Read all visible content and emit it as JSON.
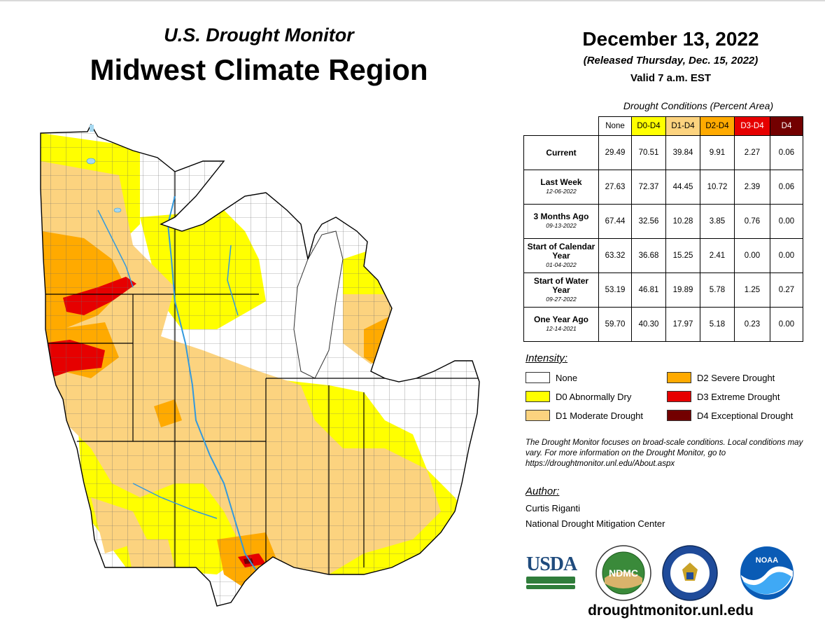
{
  "header": {
    "subtitle": "U.S. Drought Monitor",
    "title": "Midwest Climate Region",
    "date": "December 13, 2022",
    "released": "(Released Thursday, Dec. 15, 2022)",
    "valid": "Valid 7 a.m. EST"
  },
  "table": {
    "caption": "Drought Conditions (Percent Area)",
    "columns": [
      "None",
      "D0-D4",
      "D1-D4",
      "D2-D4",
      "D3-D4",
      "D4"
    ],
    "column_colors": [
      "#ffffff",
      "#ffff00",
      "#fcd37f",
      "#ffaa00",
      "#e60000",
      "#730000"
    ],
    "rows": [
      {
        "label": "Current",
        "date": "",
        "values": [
          "29.49",
          "70.51",
          "39.84",
          "9.91",
          "2.27",
          "0.06"
        ]
      },
      {
        "label": "Last Week",
        "date": "12-06-2022",
        "values": [
          "27.63",
          "72.37",
          "44.45",
          "10.72",
          "2.39",
          "0.06"
        ]
      },
      {
        "label": "3 Months Ago",
        "date": "09-13-2022",
        "values": [
          "67.44",
          "32.56",
          "10.28",
          "3.85",
          "0.76",
          "0.00"
        ]
      },
      {
        "label": "Start of Calendar Year",
        "date": "01-04-2022",
        "values": [
          "63.32",
          "36.68",
          "15.25",
          "2.41",
          "0.00",
          "0.00"
        ]
      },
      {
        "label": "Start of Water Year",
        "date": "09-27-2022",
        "values": [
          "53.19",
          "46.81",
          "19.89",
          "5.78",
          "1.25",
          "0.27"
        ]
      },
      {
        "label": "One Year Ago",
        "date": "12-14-2021",
        "values": [
          "59.70",
          "40.30",
          "17.97",
          "5.18",
          "0.23",
          "0.00"
        ]
      }
    ]
  },
  "legend": {
    "heading": "Intensity:",
    "items": [
      {
        "label": "None",
        "color": "#ffffff"
      },
      {
        "label": "D0 Abnormally Dry",
        "color": "#ffff00"
      },
      {
        "label": "D1 Moderate Drought",
        "color": "#fcd37f"
      },
      {
        "label": "D2 Severe Drought",
        "color": "#ffaa00"
      },
      {
        "label": "D3 Extreme Drought",
        "color": "#e60000"
      },
      {
        "label": "D4 Exceptional Drought",
        "color": "#730000"
      }
    ]
  },
  "note": "The Drought Monitor focuses on broad-scale conditions. Local conditions may vary. For more information on the Drought Monitor, go to https://droughtmonitor.unl.edu/About.aspx",
  "author": {
    "heading": "Author:",
    "name": "Curtis Riganti",
    "org": "National Drought Mitigation Center"
  },
  "logos": {
    "usda": "USDA",
    "ndmc": "NDMC",
    "noaa": "NOAA"
  },
  "url": "droughtmonitor.unl.edu",
  "map_colors": {
    "none": "#ffffff",
    "d0": "#ffff00",
    "d1": "#fcd37f",
    "d2": "#ffaa00",
    "d3": "#e60000",
    "d4": "#730000",
    "water": "#a6d8f0",
    "rivers": "#3399dd"
  }
}
